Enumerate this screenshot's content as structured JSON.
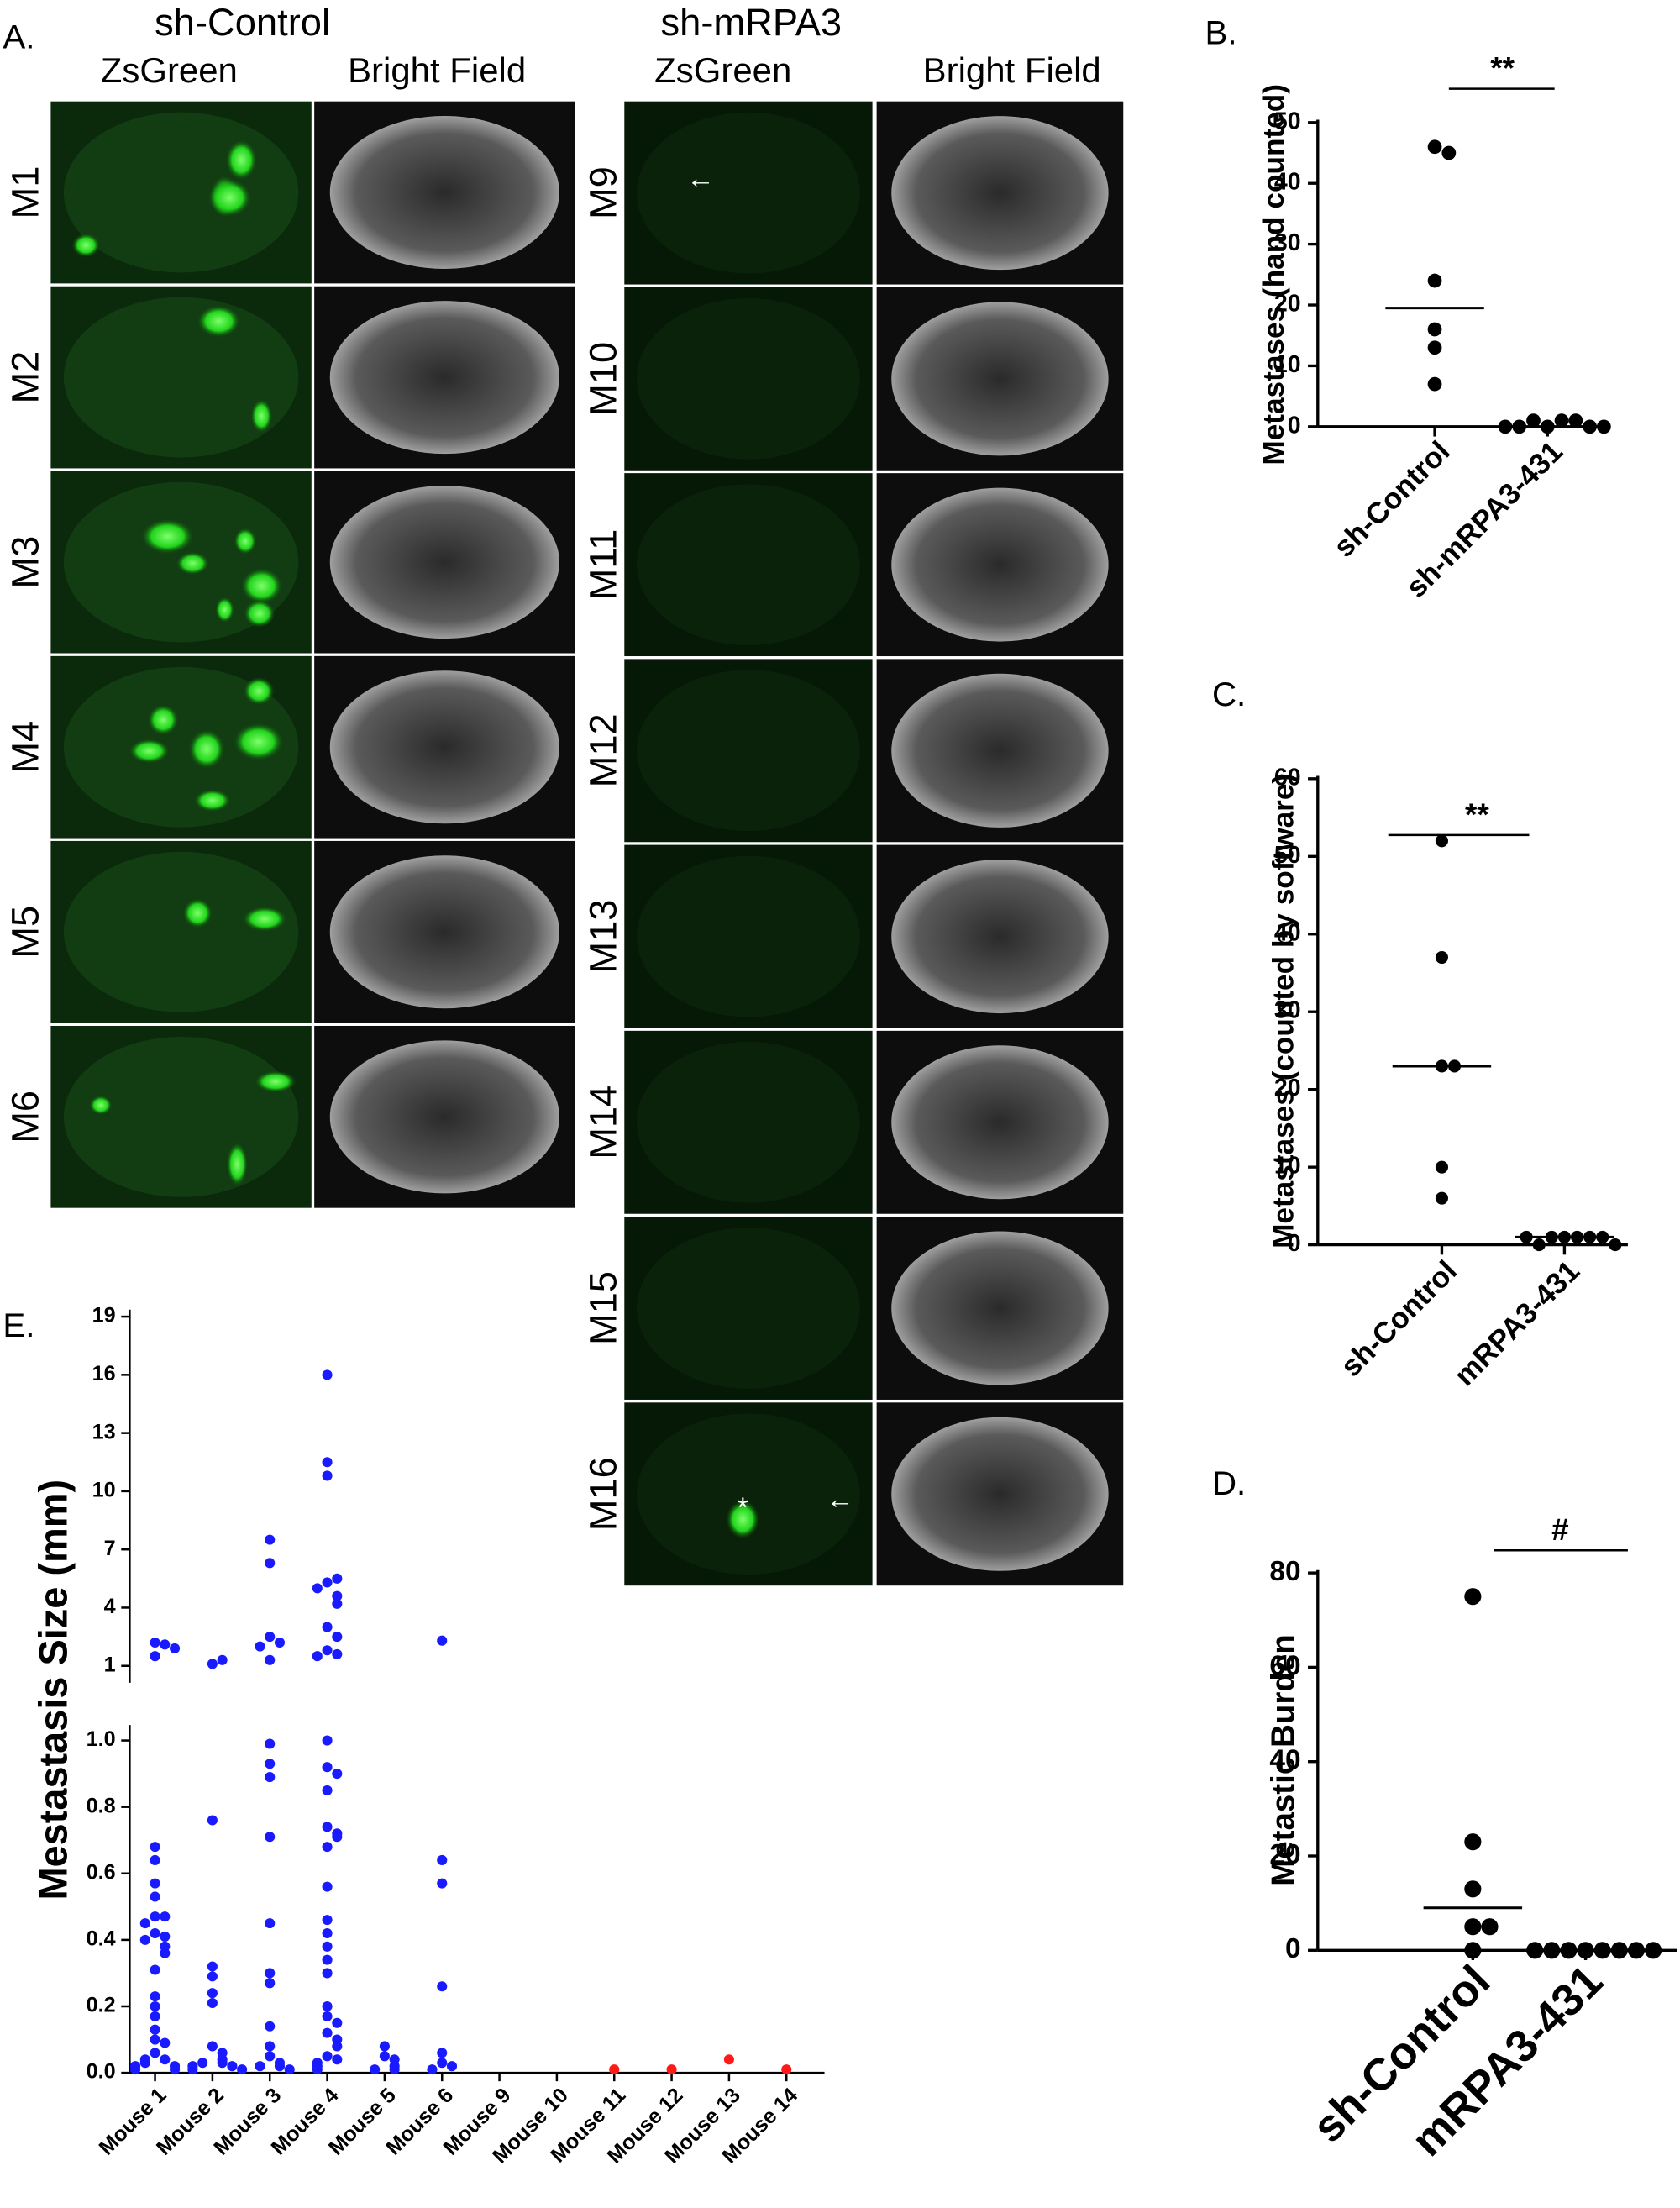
{
  "panel_a": {
    "label": "A.",
    "groups": [
      {
        "title": "sh-Control",
        "columns": [
          "ZsGreen",
          "Bright Field"
        ],
        "rows": [
          "M1",
          "M2",
          "M3",
          "M4",
          "M5",
          "M6"
        ]
      },
      {
        "title": "sh-mRPA3",
        "columns": [
          "ZsGreen",
          "Bright Field"
        ],
        "rows": [
          "M9",
          "M10",
          "M11",
          "M12",
          "M13",
          "M14",
          "M15",
          "M16"
        ]
      }
    ],
    "annotations": [
      "←",
      "*",
      "←"
    ]
  },
  "chart_data": [
    {
      "type": "strip",
      "panel_label": "B.",
      "ylabel": "Metastases (hand counted)",
      "significance": "**",
      "categories": [
        "sh-Control",
        "sh-mRPA3-431"
      ],
      "values": [
        [
          46,
          45,
          24,
          16,
          13,
          7
        ],
        [
          0,
          1,
          1,
          1,
          0,
          0,
          0,
          0
        ]
      ],
      "center_lines": [
        19.5,
        0
      ],
      "color": "#000000",
      "ylim": [
        0,
        50
      ],
      "yticks": [
        0,
        10,
        20,
        30,
        40,
        50
      ]
    },
    {
      "type": "strip",
      "panel_label": "C.",
      "ylabel": "Metastases (counted by software)",
      "significance": "**",
      "categories": [
        "sh-Control",
        "mRPA3-431"
      ],
      "values": [
        [
          52,
          37,
          23,
          23,
          10,
          6
        ],
        [
          1,
          1,
          1,
          1,
          0,
          1,
          1,
          0
        ]
      ],
      "center_lines": [
        23,
        1
      ],
      "color": "#000000",
      "ylim": [
        0,
        60
      ],
      "yticks": [
        0,
        10,
        20,
        30,
        40,
        50,
        60
      ]
    },
    {
      "type": "strip",
      "panel_label": "D.",
      "ylabel": "Metastic Burden",
      "significance": "#",
      "categories": [
        "sh-Control",
        "mRPA3-431"
      ],
      "values": [
        [
          75,
          23,
          13,
          5,
          5,
          0
        ],
        [
          0,
          0,
          0,
          0,
          0,
          0,
          0,
          0
        ]
      ],
      "center_lines": [
        9,
        0
      ],
      "color": "#000000",
      "ylim": [
        0,
        80
      ],
      "yticks": [
        0,
        20,
        40,
        60,
        80
      ]
    },
    {
      "type": "broken-strip",
      "panel_label": "E.",
      "ylabel": "Mestastasis Size (mm)",
      "categories": [
        "Mouse 1",
        "Mouse 2",
        "Mouse 3",
        "Mouse 4",
        "Mouse 5",
        "Mouse 6",
        "Mouse 9",
        "Mouse 10",
        "Mouse 11",
        "Mouse 12",
        "Mouse 13",
        "Mouse 14"
      ],
      "series": [
        {
          "color": "#1a1aff",
          "values": [
            [
              2.2,
              1.5,
              2.1,
              1.9,
              0.68,
              0.64,
              0.57,
              0.53,
              0.47,
              0.47,
              0.45,
              0.42,
              0.41,
              0.4,
              0.38,
              0.36,
              0.31,
              0.23,
              0.2,
              0.17,
              0.13,
              0.1,
              0.09,
              0.06,
              0.04,
              0.04,
              0.03,
              0.02,
              0.02,
              0.01,
              0.01
            ],
            [
              1.1,
              1.3,
              0.76,
              0.32,
              0.29,
              0.24,
              0.21,
              0.08,
              0.06,
              0.04,
              0.03,
              0.03,
              0.02,
              0.02,
              0.01,
              0.01
            ],
            [
              7.5,
              6.3,
              2.5,
              2.2,
              1.3,
              2,
              0.99,
              0.93,
              0.89,
              0.71,
              0.45,
              0.3,
              0.27,
              0.14,
              0.08,
              0.05,
              0.03,
              0.02,
              0.02,
              0.01
            ],
            [
              16,
              11.5,
              10.8,
              5.3,
              5.5,
              5,
              4.6,
              4.2,
              3,
              2.5,
              1.8,
              1.6,
              1.5,
              1,
              0.92,
              0.9,
              0.85,
              0.74,
              0.72,
              0.71,
              0.68,
              0.56,
              0.46,
              0.42,
              0.38,
              0.34,
              0.3,
              0.2,
              0.17,
              0.15,
              0.12,
              0.1,
              0.08,
              0.05,
              0.04,
              0.03,
              0.02,
              0.01
            ],
            [
              0.08,
              0.05,
              0.04,
              0.02,
              0.01,
              0.01
            ],
            [
              2.3,
              0.64,
              0.57,
              0.26,
              0.06,
              0.03,
              0.02,
              0.01
            ],
            [],
            [],
            [],
            [],
            [],
            []
          ]
        },
        {
          "color": "#ff1a1a",
          "values": [
            [],
            [],
            [],
            [],
            [],
            [],
            [],
            [],
            [
              0.01
            ],
            [
              0.01
            ],
            [
              0.04
            ],
            [
              0.01
            ]
          ]
        }
      ],
      "ylim_lower": [
        0,
        1
      ],
      "yticks_lower": [
        {
          "value": 0,
          "label": "0.0"
        },
        0.2,
        0.4,
        0.6,
        0.8,
        {
          "value": 1,
          "label": "1.0"
        }
      ],
      "ylim_upper": [
        1,
        19
      ],
      "yticks_upper": [
        1,
        4,
        7,
        10,
        13,
        16,
        19
      ]
    }
  ]
}
